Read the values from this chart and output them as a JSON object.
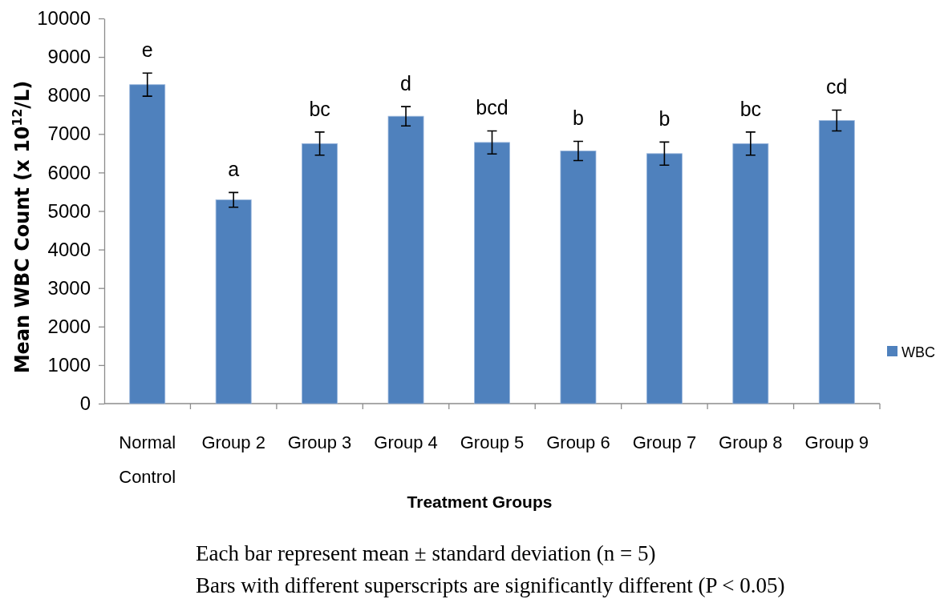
{
  "chart_data": {
    "type": "bar",
    "xlabel": "Treatment Groups",
    "ylabel": "Mean WBC Count (x 10$^{12}$/L)",
    "categories": [
      "Normal Control",
      "Group 2",
      "Group 3",
      "Group 4",
      "Group 5",
      "Group 6",
      "Group 7",
      "Group 8",
      "Group 9"
    ],
    "series": [
      {
        "name": "WBC",
        "color": "#4f81bd",
        "values": [
          8280,
          5290,
          6750,
          7460,
          6780,
          6560,
          6490,
          6750,
          7350
        ],
        "errors": [
          300,
          190,
          300,
          250,
          300,
          250,
          300,
          300,
          270
        ]
      }
    ],
    "ylim": [
      0,
      10000
    ],
    "yticks": [
      0,
      1000,
      2000,
      3000,
      4000,
      5000,
      6000,
      7000,
      8000,
      9000,
      10000
    ],
    "legend": "right",
    "annotations": [
      "e",
      "a",
      "bc",
      "d",
      "bcd",
      "b",
      "b",
      "bc",
      "cd",
      "Each bar represent mean ± standard deviation (n = 5)",
      "Bars with different superscripts are significantly different (P < 0.05)"
    ]
  }
}
